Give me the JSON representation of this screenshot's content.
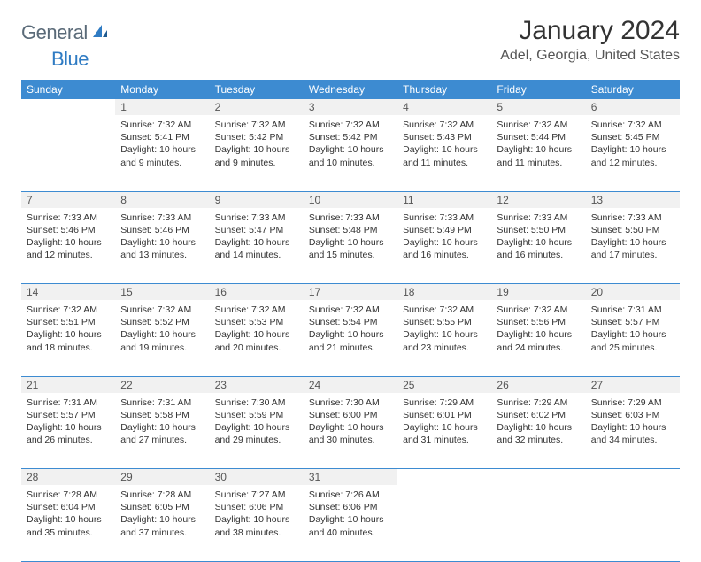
{
  "logo": {
    "general": "General",
    "blue": "Blue"
  },
  "title": "January 2024",
  "location": "Adel, Georgia, United States",
  "colors": {
    "header_bg": "#3d8bd1",
    "header_text": "#ffffff",
    "daynum_bg": "#f1f1f1",
    "row_divider": "#3d8bd1",
    "body_text": "#333333",
    "logo_gray": "#5a6a78",
    "logo_blue": "#2f7bc3"
  },
  "typography": {
    "title_fontsize": 30,
    "location_fontsize": 16,
    "dayheader_fontsize": 12,
    "cell_fontsize": 10.5
  },
  "day_headers": [
    "Sunday",
    "Monday",
    "Tuesday",
    "Wednesday",
    "Thursday",
    "Friday",
    "Saturday"
  ],
  "weeks": [
    {
      "nums": [
        "",
        "1",
        "2",
        "3",
        "4",
        "5",
        "6"
      ],
      "cells": [
        null,
        {
          "sunrise": "Sunrise: 7:32 AM",
          "sunset": "Sunset: 5:41 PM",
          "daylight1": "Daylight: 10 hours",
          "daylight2": "and 9 minutes."
        },
        {
          "sunrise": "Sunrise: 7:32 AM",
          "sunset": "Sunset: 5:42 PM",
          "daylight1": "Daylight: 10 hours",
          "daylight2": "and 9 minutes."
        },
        {
          "sunrise": "Sunrise: 7:32 AM",
          "sunset": "Sunset: 5:42 PM",
          "daylight1": "Daylight: 10 hours",
          "daylight2": "and 10 minutes."
        },
        {
          "sunrise": "Sunrise: 7:32 AM",
          "sunset": "Sunset: 5:43 PM",
          "daylight1": "Daylight: 10 hours",
          "daylight2": "and 11 minutes."
        },
        {
          "sunrise": "Sunrise: 7:32 AM",
          "sunset": "Sunset: 5:44 PM",
          "daylight1": "Daylight: 10 hours",
          "daylight2": "and 11 minutes."
        },
        {
          "sunrise": "Sunrise: 7:32 AM",
          "sunset": "Sunset: 5:45 PM",
          "daylight1": "Daylight: 10 hours",
          "daylight2": "and 12 minutes."
        }
      ]
    },
    {
      "nums": [
        "7",
        "8",
        "9",
        "10",
        "11",
        "12",
        "13"
      ],
      "cells": [
        {
          "sunrise": "Sunrise: 7:33 AM",
          "sunset": "Sunset: 5:46 PM",
          "daylight1": "Daylight: 10 hours",
          "daylight2": "and 12 minutes."
        },
        {
          "sunrise": "Sunrise: 7:33 AM",
          "sunset": "Sunset: 5:46 PM",
          "daylight1": "Daylight: 10 hours",
          "daylight2": "and 13 minutes."
        },
        {
          "sunrise": "Sunrise: 7:33 AM",
          "sunset": "Sunset: 5:47 PM",
          "daylight1": "Daylight: 10 hours",
          "daylight2": "and 14 minutes."
        },
        {
          "sunrise": "Sunrise: 7:33 AM",
          "sunset": "Sunset: 5:48 PM",
          "daylight1": "Daylight: 10 hours",
          "daylight2": "and 15 minutes."
        },
        {
          "sunrise": "Sunrise: 7:33 AM",
          "sunset": "Sunset: 5:49 PM",
          "daylight1": "Daylight: 10 hours",
          "daylight2": "and 16 minutes."
        },
        {
          "sunrise": "Sunrise: 7:33 AM",
          "sunset": "Sunset: 5:50 PM",
          "daylight1": "Daylight: 10 hours",
          "daylight2": "and 16 minutes."
        },
        {
          "sunrise": "Sunrise: 7:33 AM",
          "sunset": "Sunset: 5:50 PM",
          "daylight1": "Daylight: 10 hours",
          "daylight2": "and 17 minutes."
        }
      ]
    },
    {
      "nums": [
        "14",
        "15",
        "16",
        "17",
        "18",
        "19",
        "20"
      ],
      "cells": [
        {
          "sunrise": "Sunrise: 7:32 AM",
          "sunset": "Sunset: 5:51 PM",
          "daylight1": "Daylight: 10 hours",
          "daylight2": "and 18 minutes."
        },
        {
          "sunrise": "Sunrise: 7:32 AM",
          "sunset": "Sunset: 5:52 PM",
          "daylight1": "Daylight: 10 hours",
          "daylight2": "and 19 minutes."
        },
        {
          "sunrise": "Sunrise: 7:32 AM",
          "sunset": "Sunset: 5:53 PM",
          "daylight1": "Daylight: 10 hours",
          "daylight2": "and 20 minutes."
        },
        {
          "sunrise": "Sunrise: 7:32 AM",
          "sunset": "Sunset: 5:54 PM",
          "daylight1": "Daylight: 10 hours",
          "daylight2": "and 21 minutes."
        },
        {
          "sunrise": "Sunrise: 7:32 AM",
          "sunset": "Sunset: 5:55 PM",
          "daylight1": "Daylight: 10 hours",
          "daylight2": "and 23 minutes."
        },
        {
          "sunrise": "Sunrise: 7:32 AM",
          "sunset": "Sunset: 5:56 PM",
          "daylight1": "Daylight: 10 hours",
          "daylight2": "and 24 minutes."
        },
        {
          "sunrise": "Sunrise: 7:31 AM",
          "sunset": "Sunset: 5:57 PM",
          "daylight1": "Daylight: 10 hours",
          "daylight2": "and 25 minutes."
        }
      ]
    },
    {
      "nums": [
        "21",
        "22",
        "23",
        "24",
        "25",
        "26",
        "27"
      ],
      "cells": [
        {
          "sunrise": "Sunrise: 7:31 AM",
          "sunset": "Sunset: 5:57 PM",
          "daylight1": "Daylight: 10 hours",
          "daylight2": "and 26 minutes."
        },
        {
          "sunrise": "Sunrise: 7:31 AM",
          "sunset": "Sunset: 5:58 PM",
          "daylight1": "Daylight: 10 hours",
          "daylight2": "and 27 minutes."
        },
        {
          "sunrise": "Sunrise: 7:30 AM",
          "sunset": "Sunset: 5:59 PM",
          "daylight1": "Daylight: 10 hours",
          "daylight2": "and 29 minutes."
        },
        {
          "sunrise": "Sunrise: 7:30 AM",
          "sunset": "Sunset: 6:00 PM",
          "daylight1": "Daylight: 10 hours",
          "daylight2": "and 30 minutes."
        },
        {
          "sunrise": "Sunrise: 7:29 AM",
          "sunset": "Sunset: 6:01 PM",
          "daylight1": "Daylight: 10 hours",
          "daylight2": "and 31 minutes."
        },
        {
          "sunrise": "Sunrise: 7:29 AM",
          "sunset": "Sunset: 6:02 PM",
          "daylight1": "Daylight: 10 hours",
          "daylight2": "and 32 minutes."
        },
        {
          "sunrise": "Sunrise: 7:29 AM",
          "sunset": "Sunset: 6:03 PM",
          "daylight1": "Daylight: 10 hours",
          "daylight2": "and 34 minutes."
        }
      ]
    },
    {
      "nums": [
        "28",
        "29",
        "30",
        "31",
        "",
        "",
        ""
      ],
      "cells": [
        {
          "sunrise": "Sunrise: 7:28 AM",
          "sunset": "Sunset: 6:04 PM",
          "daylight1": "Daylight: 10 hours",
          "daylight2": "and 35 minutes."
        },
        {
          "sunrise": "Sunrise: 7:28 AM",
          "sunset": "Sunset: 6:05 PM",
          "daylight1": "Daylight: 10 hours",
          "daylight2": "and 37 minutes."
        },
        {
          "sunrise": "Sunrise: 7:27 AM",
          "sunset": "Sunset: 6:06 PM",
          "daylight1": "Daylight: 10 hours",
          "daylight2": "and 38 minutes."
        },
        {
          "sunrise": "Sunrise: 7:26 AM",
          "sunset": "Sunset: 6:06 PM",
          "daylight1": "Daylight: 10 hours",
          "daylight2": "and 40 minutes."
        },
        null,
        null,
        null
      ]
    }
  ]
}
